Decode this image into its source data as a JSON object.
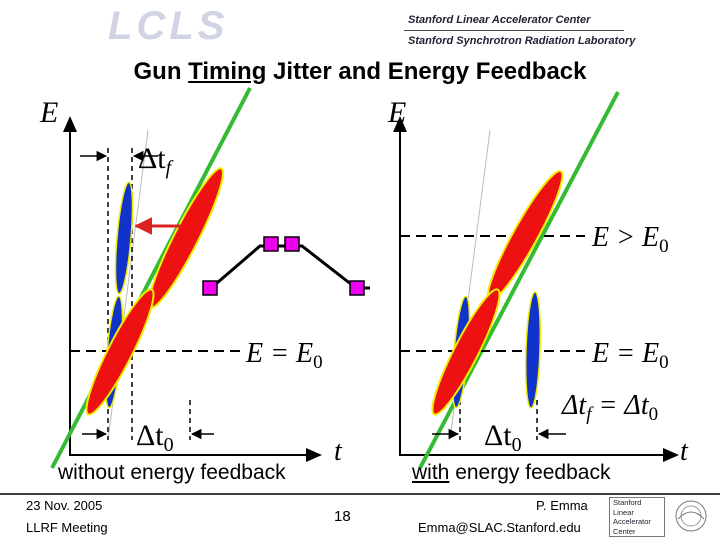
{
  "header": {
    "logo_text": "LCLS",
    "institution_line1": "Stanford Linear Accelerator Center",
    "institution_line2": "Stanford Synchrotron Radiation Laboratory"
  },
  "title": {
    "pre": "Gun ",
    "underlined": "Timing",
    "post": " Jitter and Energy Feedback"
  },
  "left_panel": {
    "axis_e": "E",
    "delta_tf": "Δt",
    "delta_tf_sub": "f",
    "eq_e0": "E = E",
    "eq_e0_sub": "0",
    "delta_t0": "Δt",
    "delta_t0_sub": "0",
    "axis_t": "t",
    "caption": "without energy feedback"
  },
  "right_panel": {
    "axis_e": "E",
    "gt_e0": "E > E",
    "gt_e0_sub": "0",
    "eq_e0": "E = E",
    "eq_e0_sub": "0",
    "delta_eq_a": "Δt",
    "delta_eq_a_sub": "f",
    "delta_eq_mid": " = Δt",
    "delta_eq_b_sub": "0",
    "delta_t0": "Δt",
    "delta_t0_sub": "0",
    "axis_t": "t",
    "caption_underlined": "with",
    "caption_rest": " energy feedback"
  },
  "footer": {
    "date": "23 Nov. 2005",
    "meeting": "LLRF Meeting",
    "page": "18",
    "author": "P. Emma",
    "email": "Emma@SLAC.Stanford.edu",
    "badge_lines": [
      "Stanford",
      "Linear",
      "Accelerator",
      "Center"
    ]
  },
  "colors": {
    "accel_line": "#33bb33",
    "bunch_red": "#ee1111",
    "bunch_blue": "#1133cc",
    "bunch_outline": "#eeee00",
    "marker": "#ee00ee",
    "arrow": "#dd2222"
  }
}
